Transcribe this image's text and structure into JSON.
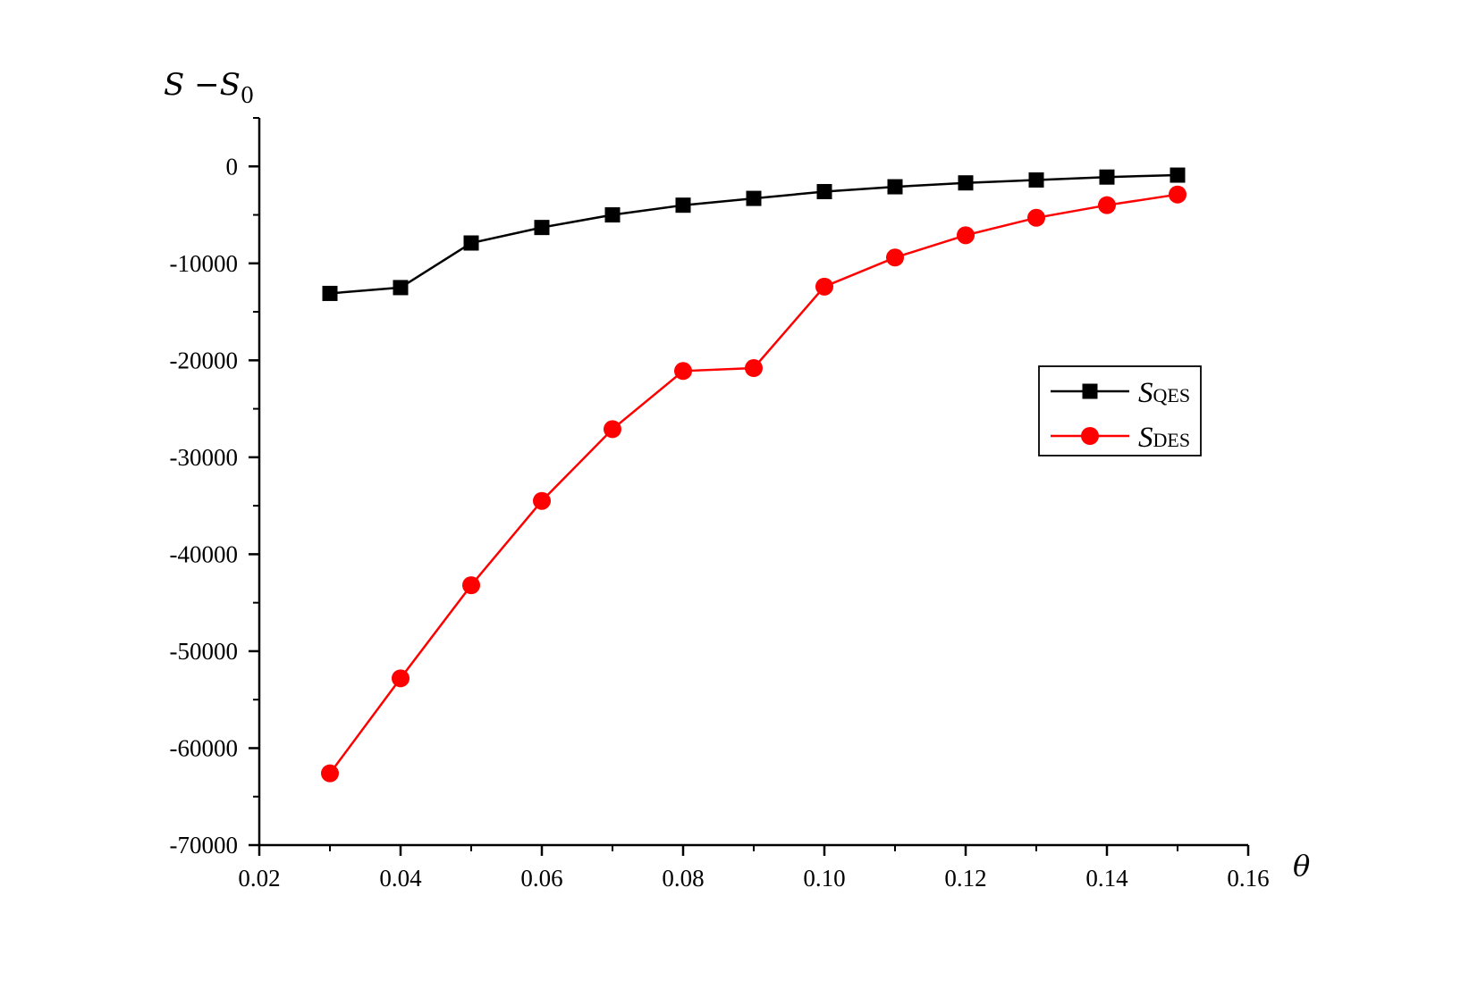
{
  "chart_data": {
    "type": "line",
    "x": [
      0.03,
      0.04,
      0.05,
      0.06,
      0.07,
      0.08,
      0.09,
      0.1,
      0.11,
      0.12,
      0.13,
      0.14,
      0.15
    ],
    "series": [
      {
        "name_main": "S",
        "name_sub": "QES",
        "color": "#000000",
        "marker": "square",
        "values": [
          -13100,
          -12500,
          -7900,
          -6300,
          -5000,
          -4000,
          -3300,
          -2600,
          -2100,
          -1700,
          -1400,
          -1100,
          -900
        ]
      },
      {
        "name_main": "S",
        "name_sub": "DES",
        "color": "#ff0000",
        "marker": "circle",
        "values": [
          -62600,
          -52800,
          -43200,
          -34500,
          -27100,
          -21100,
          -20800,
          -12400,
          -9400,
          -7100,
          -5300,
          -4000,
          -2900
        ]
      }
    ],
    "xlim": [
      0.02,
      0.16
    ],
    "ylim": [
      -70000,
      5000
    ],
    "xticks": [
      0.02,
      0.04,
      0.06,
      0.08,
      0.1,
      0.12,
      0.14,
      0.16
    ],
    "xtick_labels": [
      "0.02",
      "0.04",
      "0.06",
      "0.08",
      "0.10",
      "0.12",
      "0.14",
      "0.16"
    ],
    "yticks": [
      0,
      -10000,
      -20000,
      -30000,
      -40000,
      -50000,
      -60000,
      -70000
    ],
    "ytick_labels": [
      "0",
      "-10000",
      "-20000",
      "-30000",
      "-40000",
      "-50000",
      "-60000",
      "-70000"
    ],
    "ylabel_main": "S −S",
    "ylabel_sub": "0",
    "xlabel": "θ",
    "legend_position": "center-right",
    "grid": false
  }
}
